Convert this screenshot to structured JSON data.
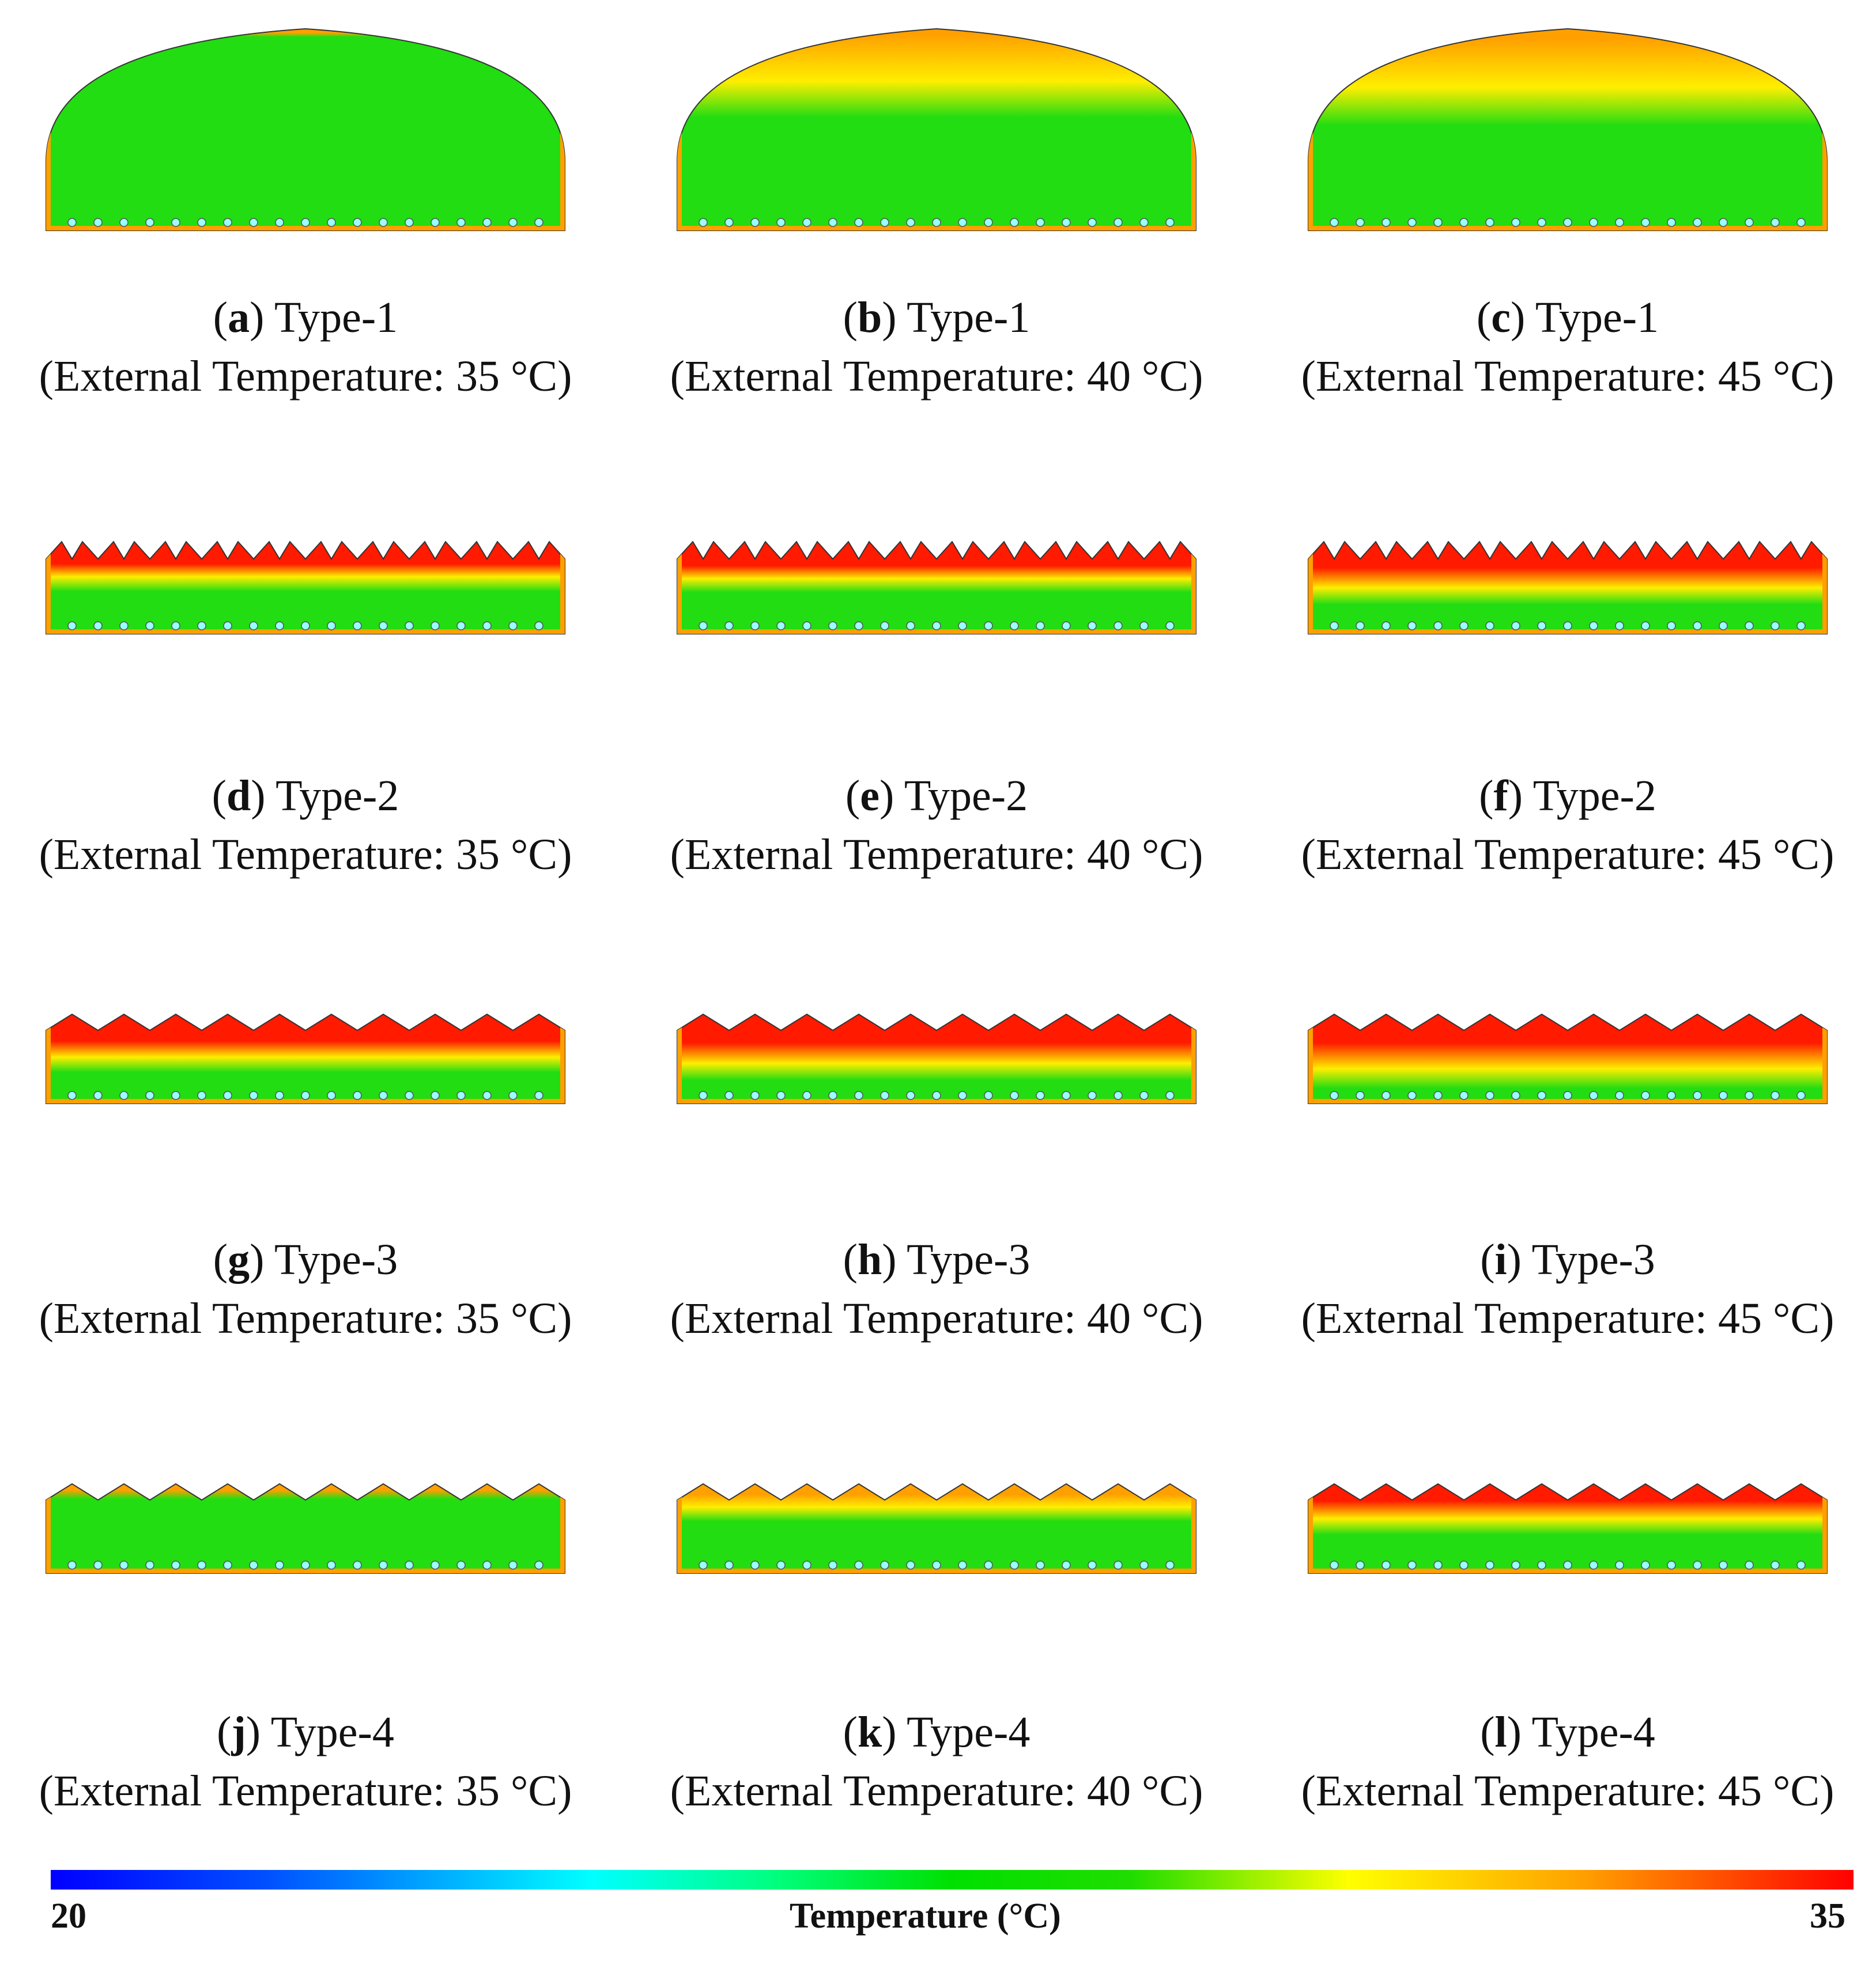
{
  "panels": [
    {
      "letter": "a",
      "type": "Type-1",
      "condition": "(External Temperature: 35 °C)"
    },
    {
      "letter": "b",
      "type": "Type-1",
      "condition": "(External Temperature: 40 °C)"
    },
    {
      "letter": "c",
      "type": "Type-1",
      "condition": "(External Temperature: 45 °C)"
    },
    {
      "letter": "d",
      "type": "Type-2",
      "condition": "(External Temperature: 35 °C)"
    },
    {
      "letter": "e",
      "type": "Type-2",
      "condition": "(External Temperature: 40 °C)"
    },
    {
      "letter": "f",
      "type": "Type-2",
      "condition": "(External Temperature: 45 °C)"
    },
    {
      "letter": "g",
      "type": "Type-3",
      "condition": "(External Temperature: 35 °C)"
    },
    {
      "letter": "h",
      "type": "Type-3",
      "condition": "(External Temperature: 40 °C)"
    },
    {
      "letter": "i",
      "type": "Type-3",
      "condition": "(External Temperature: 45 °C)"
    },
    {
      "letter": "j",
      "type": "Type-4",
      "condition": "(External Temperature: 35 °C)"
    },
    {
      "letter": "k",
      "type": "Type-4",
      "condition": "(External Temperature: 40 °C)"
    },
    {
      "letter": "l",
      "type": "Type-4",
      "condition": "(External Temperature: 45 °C)"
    }
  ],
  "legend": {
    "min": "20",
    "max": "35",
    "title": "Temperature (°C)"
  },
  "colors": {
    "cool": "#22dd11",
    "mid": "#ffee00",
    "warm": "#ffa000",
    "hot": "#ff1a00",
    "outline": "#333333"
  }
}
